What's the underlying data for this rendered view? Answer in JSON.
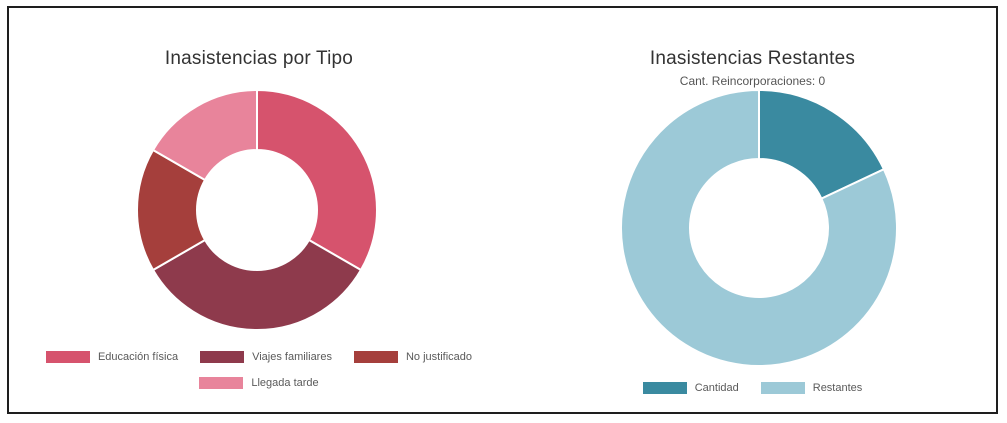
{
  "chart_data": [
    {
      "type": "pie",
      "title": "Inasistencias por Tipo",
      "subtitle": "",
      "categories": [
        "Educación física",
        "Viajes familiares",
        "No justificado",
        "Llegada tarde"
      ],
      "values": [
        4,
        4,
        2,
        2
      ],
      "colors": [
        "#d6536d",
        "#8e3a4c",
        "#a53f3c",
        "#e8849b"
      ],
      "legend_position": "bottom"
    },
    {
      "type": "pie",
      "title": "Inasistencias Restantes",
      "subtitle": "Cant. Reincorporaciones: 0",
      "categories": [
        "Cantidad",
        "Restantes"
      ],
      "values": [
        18,
        82
      ],
      "colors": [
        "#3a8aa0",
        "#9cc9d7"
      ],
      "legend_position": "bottom"
    }
  ]
}
